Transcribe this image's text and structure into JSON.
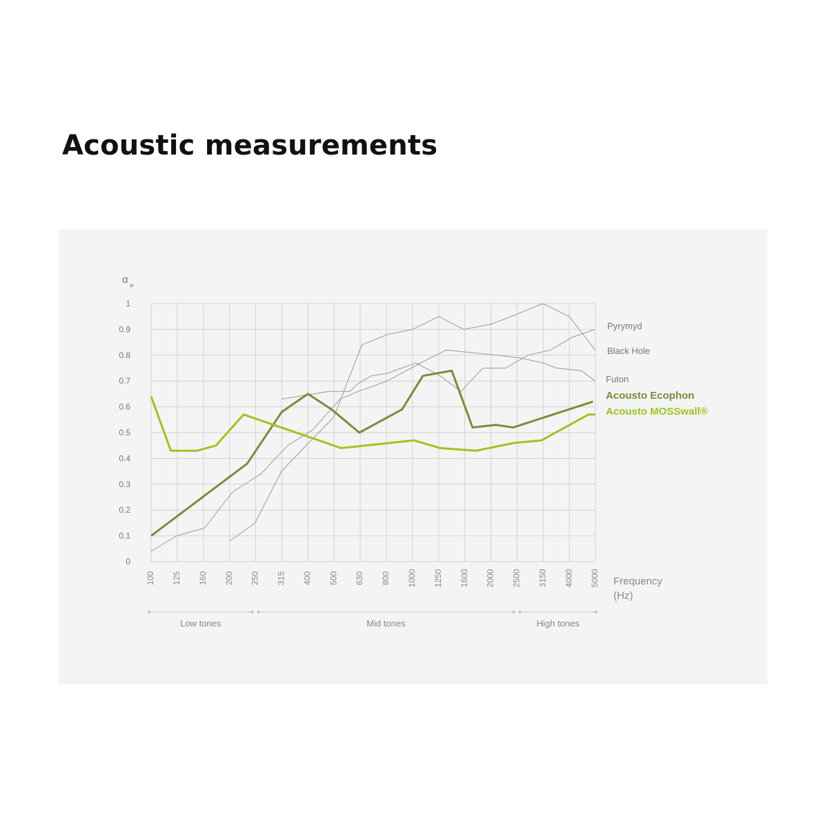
{
  "title": "Acoustic measurements",
  "chart_data": {
    "type": "line",
    "ylabel": "α",
    "ylabel_sub": "w",
    "xlabel": "Frequency",
    "xlabel_unit": "(Hz)",
    "x_scale": "log (1/3 octave bands)",
    "categories": [
      "100",
      "125",
      "160",
      "200",
      "250",
      "315",
      "400",
      "500",
      "630",
      "800",
      "1000",
      "1250",
      "1600",
      "2000",
      "2500",
      "3150",
      "4000",
      "5000"
    ],
    "ylim": [
      0,
      1
    ],
    "yticks": [
      "0",
      "0.1",
      "0.2",
      "0.3",
      "0.4",
      "0.5",
      "0.6",
      "0.7",
      "0.8",
      "0.9",
      "1"
    ],
    "grid": true,
    "legend_placement": "right, at line ends",
    "ranges": [
      {
        "label": "Low tones",
        "from": "100",
        "to": "250"
      },
      {
        "label": "Mid tones",
        "from": "250",
        "to": "2500"
      },
      {
        "label": "High tones",
        "from": "2500",
        "to": "5000"
      }
    ],
    "series": [
      {
        "name": "Pyrymyd",
        "color": "#8a8a8a",
        "emphasis": false,
        "points": [
          [
            315,
            0.63
          ],
          [
            480,
            0.66
          ],
          [
            575,
            0.66
          ],
          [
            620,
            0.69
          ],
          [
            695,
            0.72
          ],
          [
            800,
            0.73
          ],
          [
            1030,
            0.77
          ],
          [
            1275,
            0.72
          ],
          [
            1530,
            0.66
          ],
          [
            1860,
            0.75
          ],
          [
            2270,
            0.75
          ],
          [
            2760,
            0.8
          ],
          [
            3370,
            0.82
          ],
          [
            4090,
            0.87
          ],
          [
            5000,
            0.9
          ]
        ]
      },
      {
        "name": "Black Hole",
        "color": "#8a8a8a",
        "emphasis": false,
        "points": [
          [
            200,
            0.08
          ],
          [
            250,
            0.15
          ],
          [
            315,
            0.35
          ],
          [
            400,
            0.46
          ],
          [
            500,
            0.56
          ],
          [
            640,
            0.84
          ],
          [
            800,
            0.88
          ],
          [
            1000,
            0.9
          ],
          [
            1260,
            0.95
          ],
          [
            1570,
            0.9
          ],
          [
            2000,
            0.92
          ],
          [
            2520,
            0.96
          ],
          [
            3150,
            1.0
          ],
          [
            3980,
            0.95
          ],
          [
            5000,
            0.82
          ]
        ]
      },
      {
        "name": "Futon",
        "color": "#8a8a8a",
        "emphasis": false,
        "points": [
          [
            100,
            0.04
          ],
          [
            125,
            0.1
          ],
          [
            160,
            0.13
          ],
          [
            205,
            0.27
          ],
          [
            263,
            0.34
          ],
          [
            333,
            0.45
          ],
          [
            414,
            0.51
          ],
          [
            528,
            0.63
          ],
          [
            622,
            0.66
          ],
          [
            800,
            0.7
          ],
          [
            1075,
            0.77
          ],
          [
            1345,
            0.82
          ],
          [
            2100,
            0.8
          ],
          [
            2565,
            0.79
          ],
          [
            3155,
            0.77
          ],
          [
            3560,
            0.75
          ],
          [
            4430,
            0.74
          ],
          [
            5000,
            0.7
          ]
        ]
      },
      {
        "name": "Acousto Ecophon",
        "color": "#7b8b3a",
        "emphasis": true,
        "points": [
          [
            100,
            0.1
          ],
          [
            233,
            0.38
          ],
          [
            316,
            0.58
          ],
          [
            398,
            0.65
          ],
          [
            490,
            0.59
          ],
          [
            626,
            0.5
          ],
          [
            912,
            0.59
          ],
          [
            1096,
            0.72
          ],
          [
            1413,
            0.74
          ],
          [
            1698,
            0.52
          ],
          [
            2089,
            0.53
          ],
          [
            2427,
            0.52
          ],
          [
            4900,
            0.62
          ]
        ]
      },
      {
        "name": "Acousto MOSSwall®",
        "color": "#9cc520",
        "emphasis": true,
        "points": [
          [
            100,
            0.64
          ],
          [
            119,
            0.43
          ],
          [
            150,
            0.43
          ],
          [
            177,
            0.45
          ],
          [
            226,
            0.57
          ],
          [
            534,
            0.44
          ],
          [
            1012,
            0.47
          ],
          [
            1276,
            0.44
          ],
          [
            1750,
            0.43
          ],
          [
            2443,
            0.46
          ],
          [
            3112,
            0.47
          ],
          [
            4710,
            0.57
          ],
          [
            5000,
            0.57
          ]
        ]
      }
    ]
  }
}
